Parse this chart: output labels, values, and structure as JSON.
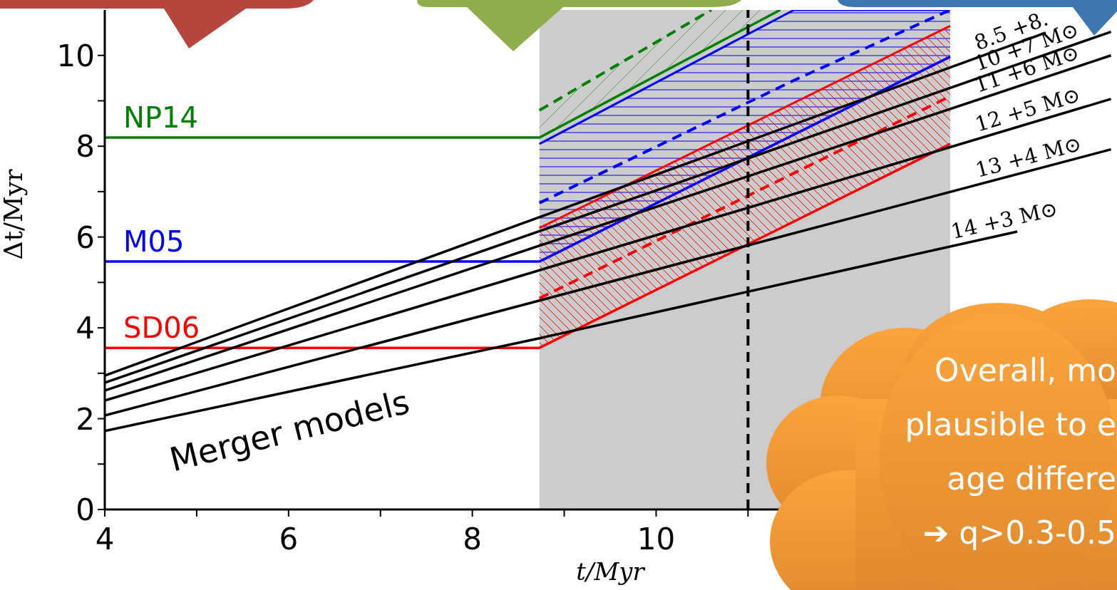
{
  "chart_data": {
    "type": "line",
    "xlabel": "t/Myr",
    "ylabel": "Δt/Myr",
    "xlim": [
      4,
      15
    ],
    "ylim": [
      0,
      11
    ],
    "xticks": [
      4,
      {
        "value": 5,
        "label": null
      },
      6,
      {
        "value": 7,
        "label": null
      },
      8,
      {
        "value": 9,
        "label": null
      },
      10,
      {
        "value": 11,
        "label": null
      }
    ],
    "yticks": [
      0,
      {
        "value": 1,
        "label": null
      },
      2,
      {
        "value": 3,
        "label": null
      },
      4,
      {
        "value": 5,
        "label": null
      },
      6,
      {
        "value": 7,
        "label": null
      },
      8,
      {
        "value": 9,
        "label": null
      },
      10
    ],
    "grid": false,
    "legend": false,
    "marker": "none",
    "series": [
      {
        "name": "NP14",
        "color": "#008000",
        "x": [
          4,
          8.73,
          11.35
        ],
        "values": [
          8.19,
          8.19,
          11
        ]
      },
      {
        "color": "#008000",
        "line_style": "dashed",
        "x": [
          8.73,
          10.6,
          11.35
        ],
        "values": [
          8.79,
          11,
          null
        ],
        "lower": [
          8.19,
          10.19,
          11
        ],
        "upper": [
          8.79,
          11,
          11
        ]
      },
      {
        "name": "M05",
        "color": "#0000ff",
        "x": [
          4,
          8.73,
          13.2
        ],
        "values": [
          5.46,
          5.46,
          9.97
        ]
      },
      {
        "color": "#0000ff",
        "line_style": "dashed",
        "x": [
          8.73,
          11.5,
          13.2
        ],
        "values": [
          6.75,
          9.45,
          11
        ],
        "lower": [
          5.46,
          8.25,
          9.97
        ],
        "upper": [
          8.05,
          11,
          11
        ]
      },
      {
        "name": "SD06",
        "color": "#ff0000",
        "x": [
          4,
          8.73,
          13.2
        ],
        "values": [
          3.56,
          3.56,
          8.05
        ]
      },
      {
        "color": "#ff0000",
        "line_style": "dashed",
        "x": [
          8.73,
          13.2
        ],
        "values": [
          4.65,
          9.1
        ],
        "lower": [
          3.56,
          8.05
        ],
        "upper": [
          6.2,
          10.65
        ]
      },
      {
        "name": "8.5 +8.",
        "color": "#000000",
        "x": [
          4,
          14.24
        ],
        "values": [
          2.95,
          10.5
        ]
      },
      {
        "name": "10 +7 M⊙",
        "color": "#000000",
        "x": [
          4,
          14.95
        ],
        "values": [
          2.79,
          10.52
        ]
      },
      {
        "name": "11 +6 M⊙",
        "color": "#000000",
        "x": [
          4,
          14.95
        ],
        "values": [
          2.62,
          10.0
        ]
      },
      {
        "name": "12 +5 M⊙",
        "color": "#000000",
        "x": [
          4,
          14.95
        ],
        "values": [
          2.4,
          9.04
        ]
      },
      {
        "name": "13 +4 M⊙",
        "color": "#000000",
        "x": [
          4,
          14.95
        ],
        "values": [
          2.07,
          7.93
        ]
      },
      {
        "name": "14 +3 M⊙",
        "color": "#000000",
        "x": [
          4,
          8.73,
          13.93
        ],
        "values": [
          1.73,
          3.77,
          6.12
        ]
      }
    ],
    "ref_lines": [
      {
        "axis": "x",
        "value": 11,
        "color": "#000000",
        "line_style": "dashed"
      }
    ],
    "bands": [
      {
        "axis": "x",
        "from": 8.73,
        "to": 13.2,
        "color": "#cccccc"
      }
    ],
    "annotations": [
      "Merger models",
      "Overall, mo",
      "plausible to e",
      "age differe",
      "➔ q>0.3-0.5"
    ]
  }
}
